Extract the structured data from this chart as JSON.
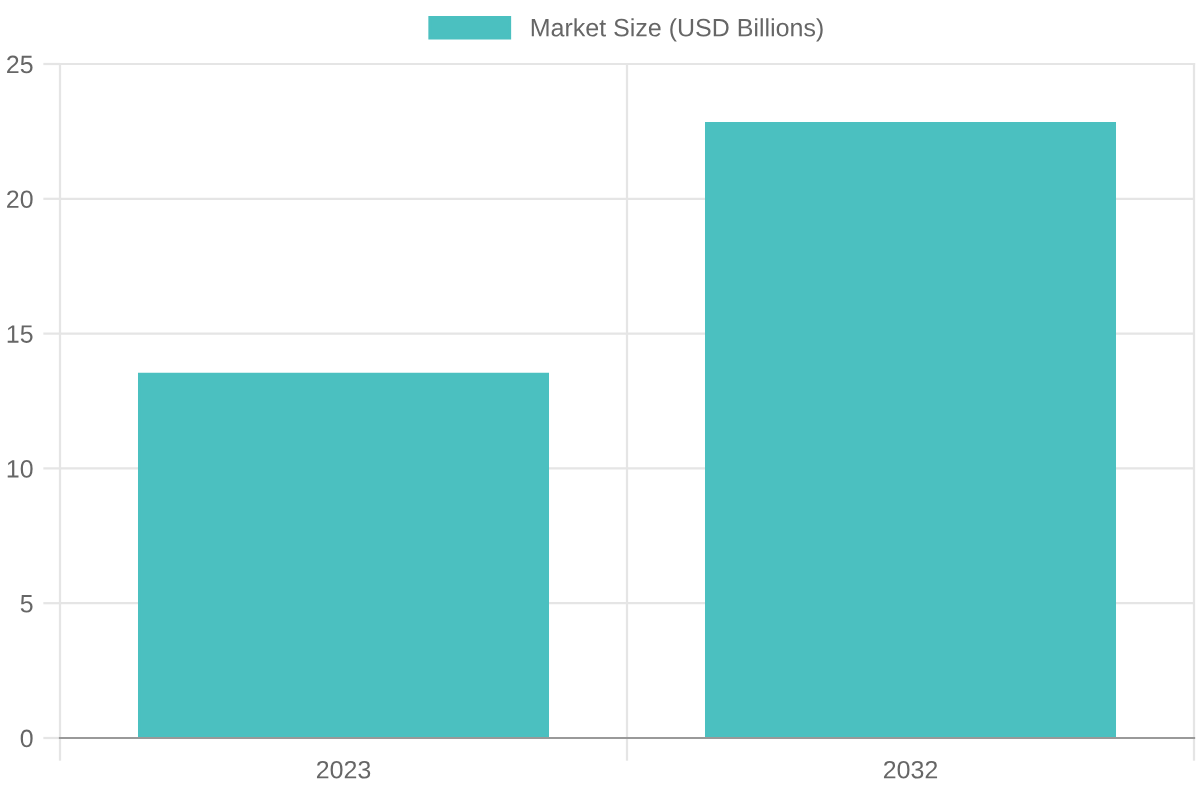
{
  "chart_data": {
    "type": "bar",
    "categories": [
      "2023",
      "2032"
    ],
    "series": [
      {
        "name": "Market Size (USD Billions)",
        "color": "#4bc0c0",
        "values": [
          13.5,
          22.8
        ]
      }
    ],
    "ylim": [
      0,
      25
    ],
    "yticks": [
      0,
      5,
      10,
      15,
      20,
      25
    ],
    "grid": true,
    "legend": "top"
  }
}
